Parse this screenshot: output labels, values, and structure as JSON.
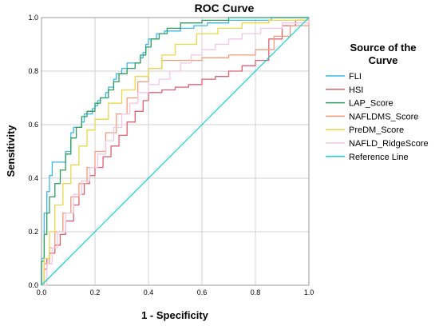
{
  "chart_data": {
    "type": "line",
    "title": "ROC Curve",
    "xlabel": "1 - Specificity",
    "ylabel": "Sensitivity",
    "xlim": [
      0,
      1
    ],
    "ylim": [
      0,
      1
    ],
    "x_ticks": [
      "0.0",
      "0.2",
      "0.4",
      "0.6",
      "0.8",
      "1.0"
    ],
    "y_ticks": [
      "0.0",
      "0.2",
      "0.4",
      "0.6",
      "0.8",
      "1.0"
    ],
    "grid": true,
    "legend": {
      "title_line1": "Source of the",
      "title_line2": "Curve",
      "placement": "right"
    },
    "series": [
      {
        "name": "FLI",
        "color": "#3BB8E8",
        "points": [
          [
            0,
            0
          ],
          [
            0,
            0.1
          ],
          [
            0.01,
            0.2
          ],
          [
            0.01,
            0.27
          ],
          [
            0.02,
            0.27
          ],
          [
            0.02,
            0.35
          ],
          [
            0.03,
            0.38
          ],
          [
            0.03,
            0.41
          ],
          [
            0.04,
            0.41
          ],
          [
            0.04,
            0.46
          ],
          [
            0.08,
            0.46
          ],
          [
            0.09,
            0.5
          ],
          [
            0.11,
            0.57
          ],
          [
            0.12,
            0.59
          ],
          [
            0.15,
            0.61
          ],
          [
            0.16,
            0.64
          ],
          [
            0.19,
            0.66
          ],
          [
            0.2,
            0.67
          ],
          [
            0.21,
            0.69
          ],
          [
            0.22,
            0.7
          ],
          [
            0.24,
            0.72
          ],
          [
            0.25,
            0.74
          ],
          [
            0.27,
            0.77
          ],
          [
            0.28,
            0.79
          ],
          [
            0.3,
            0.81
          ],
          [
            0.32,
            0.83
          ],
          [
            0.35,
            0.83
          ],
          [
            0.37,
            0.85
          ],
          [
            0.38,
            0.87
          ],
          [
            0.39,
            0.9
          ],
          [
            0.4,
            0.92
          ],
          [
            0.43,
            0.94
          ],
          [
            0.46,
            0.95
          ],
          [
            0.52,
            0.96
          ],
          [
            0.57,
            0.97
          ],
          [
            0.62,
            0.98
          ],
          [
            0.7,
            0.99
          ],
          [
            0.78,
            0.99
          ],
          [
            0.86,
            1.0
          ],
          [
            1.0,
            1.0
          ]
        ]
      },
      {
        "name": "HSI",
        "color": "#E06070",
        "points": [
          [
            0,
            0
          ],
          [
            0.01,
            0.06
          ],
          [
            0.02,
            0.1
          ],
          [
            0.03,
            0.12
          ],
          [
            0.05,
            0.15
          ],
          [
            0.07,
            0.19
          ],
          [
            0.09,
            0.24
          ],
          [
            0.12,
            0.3
          ],
          [
            0.14,
            0.34
          ],
          [
            0.16,
            0.38
          ],
          [
            0.18,
            0.41
          ],
          [
            0.2,
            0.44
          ],
          [
            0.23,
            0.48
          ],
          [
            0.26,
            0.52
          ],
          [
            0.29,
            0.56
          ],
          [
            0.32,
            0.61
          ],
          [
            0.35,
            0.65
          ],
          [
            0.38,
            0.69
          ],
          [
            0.4,
            0.72
          ],
          [
            0.45,
            0.73
          ],
          [
            0.5,
            0.74
          ],
          [
            0.55,
            0.75
          ],
          [
            0.6,
            0.77
          ],
          [
            0.65,
            0.78
          ],
          [
            0.7,
            0.8
          ],
          [
            0.75,
            0.82
          ],
          [
            0.8,
            0.84
          ],
          [
            0.85,
            0.92
          ],
          [
            0.9,
            0.97
          ],
          [
            0.95,
            0.99
          ],
          [
            1.0,
            1.0
          ]
        ]
      },
      {
        "name": "LAP_Score",
        "color": "#2E9E5E",
        "points": [
          [
            0,
            0
          ],
          [
            0,
            0.09
          ],
          [
            0.01,
            0.19
          ],
          [
            0.02,
            0.27
          ],
          [
            0.03,
            0.33
          ],
          [
            0.05,
            0.38
          ],
          [
            0.07,
            0.43
          ],
          [
            0.09,
            0.49
          ],
          [
            0.11,
            0.55
          ],
          [
            0.13,
            0.59
          ],
          [
            0.15,
            0.63
          ],
          [
            0.17,
            0.65
          ],
          [
            0.2,
            0.68
          ],
          [
            0.22,
            0.7
          ],
          [
            0.25,
            0.73
          ],
          [
            0.27,
            0.76
          ],
          [
            0.29,
            0.79
          ],
          [
            0.32,
            0.81
          ],
          [
            0.35,
            0.83
          ],
          [
            0.37,
            0.86
          ],
          [
            0.39,
            0.89
          ],
          [
            0.41,
            0.92
          ],
          [
            0.44,
            0.94
          ],
          [
            0.47,
            0.96
          ],
          [
            0.52,
            0.98
          ],
          [
            0.6,
            0.99
          ],
          [
            0.7,
            1.0
          ],
          [
            1.0,
            1.0
          ]
        ]
      },
      {
        "name": "NAFLDMS_Score",
        "color": "#F49A7A",
        "points": [
          [
            0,
            0
          ],
          [
            0.01,
            0.08
          ],
          [
            0.03,
            0.14
          ],
          [
            0.05,
            0.2
          ],
          [
            0.08,
            0.27
          ],
          [
            0.11,
            0.33
          ],
          [
            0.14,
            0.38
          ],
          [
            0.17,
            0.44
          ],
          [
            0.2,
            0.5
          ],
          [
            0.24,
            0.57
          ],
          [
            0.28,
            0.64
          ],
          [
            0.32,
            0.7
          ],
          [
            0.36,
            0.76
          ],
          [
            0.4,
            0.81
          ],
          [
            0.45,
            0.84
          ],
          [
            0.5,
            0.84
          ],
          [
            0.6,
            0.85
          ],
          [
            0.7,
            0.86
          ],
          [
            0.8,
            0.88
          ],
          [
            0.87,
            0.93
          ],
          [
            0.93,
            0.97
          ],
          [
            1.0,
            1.0
          ]
        ]
      },
      {
        "name": "PreDM_Score",
        "color": "#E8D84A",
        "points": [
          [
            0,
            0
          ],
          [
            0.01,
            0.1
          ],
          [
            0.03,
            0.2
          ],
          [
            0.05,
            0.3
          ],
          [
            0.08,
            0.38
          ],
          [
            0.11,
            0.45
          ],
          [
            0.14,
            0.52
          ],
          [
            0.17,
            0.58
          ],
          [
            0.2,
            0.62
          ],
          [
            0.25,
            0.68
          ],
          [
            0.3,
            0.73
          ],
          [
            0.35,
            0.78
          ],
          [
            0.4,
            0.81
          ],
          [
            0.45,
            0.86
          ],
          [
            0.5,
            0.9
          ],
          [
            0.58,
            0.94
          ],
          [
            0.66,
            0.96
          ],
          [
            0.75,
            0.98
          ],
          [
            0.85,
            0.99
          ],
          [
            1.0,
            1.0
          ]
        ]
      },
      {
        "name": "NAFLD_RidgeScore",
        "color": "#F2C8E0",
        "points": [
          [
            0,
            0
          ],
          [
            0.02,
            0.08
          ],
          [
            0.04,
            0.14
          ],
          [
            0.06,
            0.2
          ],
          [
            0.09,
            0.27
          ],
          [
            0.12,
            0.34
          ],
          [
            0.15,
            0.39
          ],
          [
            0.18,
            0.44
          ],
          [
            0.21,
            0.49
          ],
          [
            0.24,
            0.54
          ],
          [
            0.27,
            0.59
          ],
          [
            0.3,
            0.64
          ],
          [
            0.33,
            0.68
          ],
          [
            0.36,
            0.72
          ],
          [
            0.4,
            0.75
          ],
          [
            0.44,
            0.77
          ],
          [
            0.48,
            0.8
          ],
          [
            0.52,
            0.83
          ],
          [
            0.56,
            0.86
          ],
          [
            0.6,
            0.88
          ],
          [
            0.65,
            0.9
          ],
          [
            0.7,
            0.92
          ],
          [
            0.75,
            0.94
          ],
          [
            0.82,
            0.96
          ],
          [
            0.9,
            0.98
          ],
          [
            1.0,
            1.0
          ]
        ]
      },
      {
        "name": "Reference Line",
        "color": "#17D3D3",
        "points": [
          [
            0,
            0
          ],
          [
            1,
            1
          ]
        ]
      }
    ]
  }
}
